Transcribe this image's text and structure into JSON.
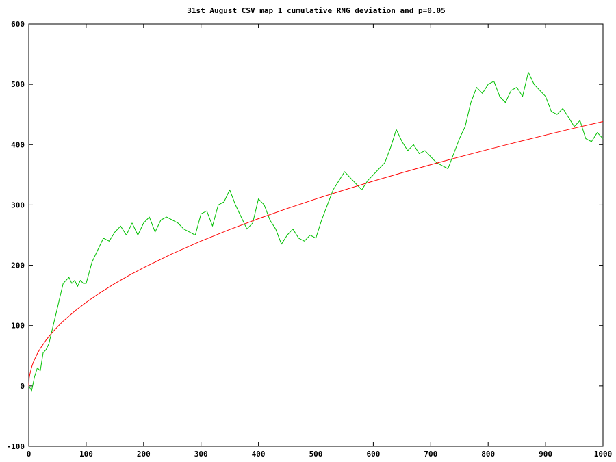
{
  "chart_data": {
    "type": "line",
    "title": "31st August CSV map 1 cumulative RNG deviation and p=0.05",
    "xlabel": "",
    "ylabel": "",
    "xlim": [
      0,
      1000
    ],
    "ylim": [
      -100,
      600
    ],
    "x_ticks": [
      0,
      100,
      200,
      300,
      400,
      500,
      600,
      700,
      800,
      900,
      1000
    ],
    "y_ticks": [
      -100,
      0,
      100,
      200,
      300,
      400,
      500,
      600
    ],
    "grid": false,
    "legend": "none",
    "series": [
      {
        "color": "#00c000",
        "x": [
          0,
          5,
          10,
          15,
          20,
          25,
          30,
          35,
          40,
          45,
          50,
          55,
          60,
          65,
          70,
          75,
          80,
          85,
          90,
          95,
          100,
          110,
          120,
          130,
          140,
          150,
          160,
          170,
          180,
          190,
          200,
          210,
          220,
          230,
          240,
          250,
          260,
          270,
          280,
          290,
          300,
          310,
          320,
          330,
          340,
          350,
          360,
          370,
          380,
          390,
          400,
          410,
          420,
          430,
          440,
          450,
          460,
          470,
          480,
          490,
          500,
          510,
          520,
          530,
          540,
          550,
          560,
          570,
          580,
          590,
          600,
          610,
          620,
          630,
          640,
          650,
          660,
          670,
          680,
          690,
          700,
          710,
          720,
          730,
          740,
          750,
          760,
          770,
          780,
          790,
          800,
          810,
          820,
          830,
          840,
          850,
          860,
          870,
          880,
          890,
          900,
          910,
          920,
          930,
          940,
          950,
          960,
          970,
          980,
          990,
          1000
        ],
        "values": [
          0,
          -8,
          15,
          30,
          25,
          55,
          60,
          70,
          90,
          110,
          130,
          150,
          170,
          175,
          180,
          170,
          175,
          165,
          175,
          170,
          170,
          205,
          225,
          245,
          240,
          255,
          265,
          250,
          270,
          250,
          270,
          280,
          255,
          275,
          280,
          275,
          270,
          260,
          255,
          250,
          285,
          290,
          265,
          300,
          305,
          325,
          300,
          280,
          260,
          270,
          310,
          300,
          275,
          260,
          235,
          250,
          260,
          245,
          240,
          250,
          245,
          275,
          300,
          325,
          340,
          355,
          345,
          335,
          325,
          340,
          350,
          360,
          370,
          395,
          425,
          405,
          390,
          400,
          385,
          390,
          380,
          370,
          365,
          360,
          385,
          410,
          430,
          470,
          495,
          485,
          500,
          505,
          480,
          470,
          490,
          495,
          480,
          520,
          500,
          490,
          480,
          455,
          450,
          460,
          445,
          430,
          440,
          410,
          405,
          420,
          410
        ]
      },
      {
        "color": "#ff0000",
        "x": [
          0,
          1,
          2,
          4,
          6,
          8,
          10,
          15,
          20,
          30,
          40,
          50,
          60,
          80,
          100,
          125,
          150,
          175,
          200,
          250,
          300,
          350,
          400,
          450,
          500,
          550,
          600,
          650,
          700,
          750,
          800,
          850,
          900,
          950,
          1000
        ],
        "values": [
          0,
          13.9,
          19.6,
          27.7,
          33.9,
          39.2,
          43.8,
          53.7,
          62.0,
          75.9,
          87.7,
          98.0,
          107.4,
          124.0,
          138.6,
          155.0,
          169.8,
          183.4,
          196.0,
          219.2,
          240.1,
          259.3,
          277.2,
          294.0,
          309.9,
          325.0,
          339.5,
          353.4,
          366.7,
          379.6,
          392.0,
          404.1,
          415.9,
          427.3,
          438.3
        ]
      }
    ]
  }
}
